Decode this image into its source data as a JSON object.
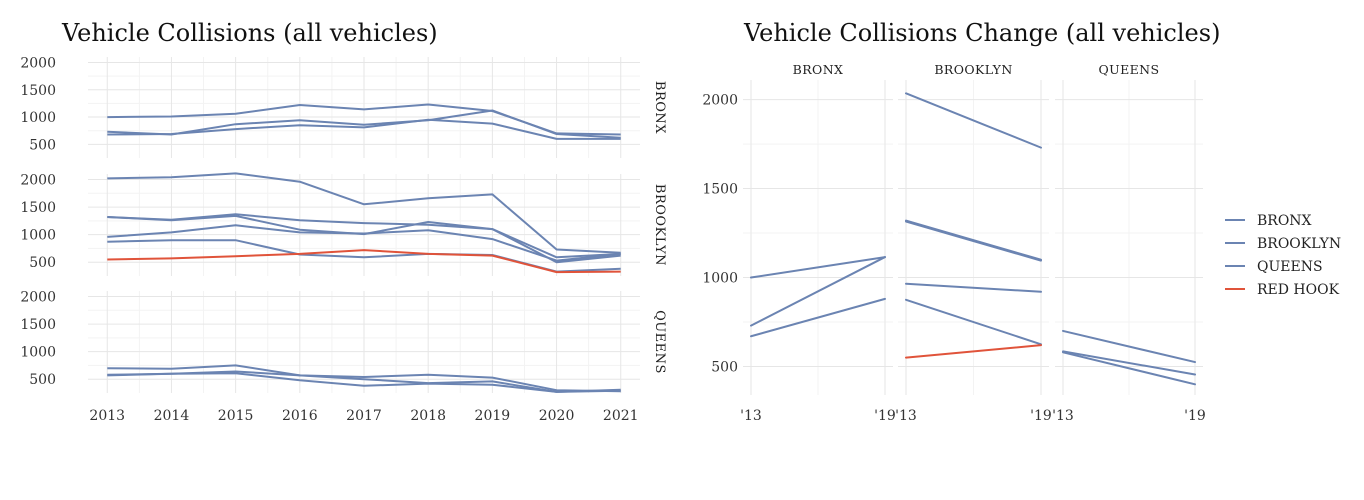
{
  "colors": {
    "series": "#6b84b2",
    "highlight": "#e0533a",
    "grid_major": "#e6e6e6",
    "grid_minor": "#f3f3f3"
  },
  "chart_data": [
    {
      "type": "line",
      "title": "Vehicle Collisions (all vehicles)",
      "x": [
        2013,
        2014,
        2015,
        2016,
        2017,
        2018,
        2019,
        2020,
        2021
      ],
      "xticks": [
        "2013",
        "2014",
        "2015",
        "2016",
        "2017",
        "2018",
        "2019",
        "2020",
        "2021"
      ],
      "yticks": [
        "500",
        "1000",
        "1500",
        "2000"
      ],
      "ylim": [
        250,
        2100
      ],
      "grid": true,
      "facets": [
        {
          "label": "BRONX",
          "series": [
            {
              "values": [
                1000,
                1010,
                1060,
                1220,
                1140,
                1230,
                1110,
                700,
                680
              ],
              "highlight": false
            },
            {
              "values": [
                730,
                680,
                870,
                940,
                860,
                940,
                1120,
                690,
                620
              ],
              "highlight": false
            },
            {
              "values": [
                680,
                690,
                780,
                850,
                810,
                950,
                880,
                600,
                600
              ],
              "highlight": false
            }
          ]
        },
        {
          "label": "BROOKLYN",
          "series": [
            {
              "values": [
                2020,
                2040,
                2110,
                1960,
                1550,
                1660,
                1730,
                730,
                670
              ],
              "highlight": false
            },
            {
              "values": [
                1320,
                1270,
                1370,
                1260,
                1210,
                1180,
                1100,
                590,
                650
              ],
              "highlight": false
            },
            {
              "values": [
                1320,
                1260,
                1340,
                1090,
                1010,
                1230,
                1100,
                500,
                620
              ],
              "highlight": false
            },
            {
              "values": [
                960,
                1040,
                1170,
                1040,
                1020,
                1080,
                920,
                530,
                650
              ],
              "highlight": false
            },
            {
              "values": [
                870,
                900,
                900,
                640,
                590,
                650,
                630,
                330,
                380
              ],
              "highlight": false
            },
            {
              "values": [
                550,
                570,
                610,
                650,
                720,
                650,
                620,
                320,
                330
              ],
              "highlight": true
            }
          ]
        },
        {
          "label": "QUEENS",
          "series": [
            {
              "values": [
                700,
                690,
                750,
                570,
                540,
                580,
                530,
                300,
                280
              ],
              "highlight": false
            },
            {
              "values": [
                580,
                600,
                640,
                570,
                500,
                430,
                460,
                270,
                310
              ],
              "highlight": false
            },
            {
              "values": [
                570,
                600,
                610,
                480,
                380,
                420,
                400,
                270,
                290
              ],
              "highlight": false
            }
          ]
        }
      ]
    },
    {
      "type": "line",
      "title": "Vehicle Collisions Change (all vehicles)",
      "x": [
        2013,
        2019
      ],
      "xticks": [
        "'13",
        "'19"
      ],
      "yticks": [
        "500",
        "1000",
        "1500",
        "2000"
      ],
      "ylim": [
        340,
        2110
      ],
      "grid": true,
      "facets": [
        {
          "label": "BRONX",
          "series": [
            {
              "values": [
                1000,
                1115
              ],
              "highlight": false
            },
            {
              "values": [
                730,
                1115
              ],
              "highlight": false
            },
            {
              "values": [
                670,
                880
              ],
              "highlight": false
            }
          ]
        },
        {
          "label": "BROOKLYN",
          "series": [
            {
              "values": [
                2035,
                1730
              ],
              "highlight": false
            },
            {
              "values": [
                1320,
                1100
              ],
              "highlight": false
            },
            {
              "values": [
                1315,
                1095
              ],
              "highlight": false
            },
            {
              "values": [
                965,
                920
              ],
              "highlight": false
            },
            {
              "values": [
                875,
                625
              ],
              "highlight": false
            },
            {
              "values": [
                550,
                620
              ],
              "highlight": true
            }
          ]
        },
        {
          "label": "QUEENS",
          "series": [
            {
              "values": [
                700,
                525
              ],
              "highlight": false
            },
            {
              "values": [
                585,
                455
              ],
              "highlight": false
            },
            {
              "values": [
                580,
                400
              ],
              "highlight": false
            }
          ]
        }
      ],
      "legend": {
        "position": "right",
        "entries": [
          {
            "label": "BRONX",
            "color": "#6b84b2"
          },
          {
            "label": "BROOKLYN",
            "color": "#6b84b2"
          },
          {
            "label": "QUEENS",
            "color": "#6b84b2"
          },
          {
            "label": "RED HOOK",
            "color": "#e0533a"
          }
        ]
      }
    }
  ]
}
